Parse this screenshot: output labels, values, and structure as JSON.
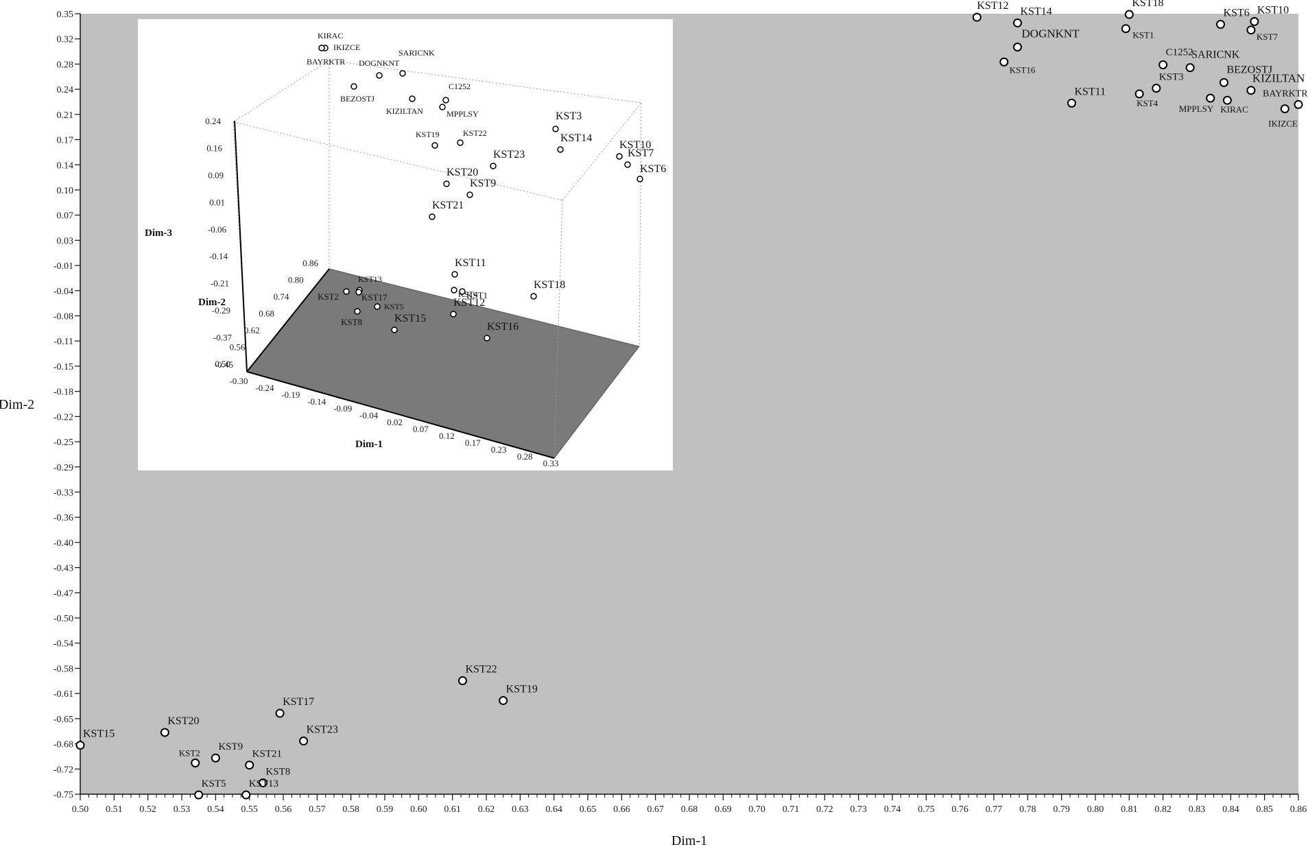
{
  "chart_data": [
    {
      "type": "scatter",
      "title": "",
      "xlabel": "Dim-1",
      "ylabel": "Dim-2",
      "xlim": [
        0.5,
        0.86
      ],
      "ylim": [
        -0.75,
        0.35
      ],
      "grid": false,
      "background": "#c0c0c0",
      "x_ticks": [
        "0.50",
        "0.51",
        "0.52",
        "0.53",
        "0.54",
        "0.55",
        "0.56",
        "0.57",
        "0.58",
        "0.59",
        "0.60",
        "0.61",
        "0.62",
        "0.63",
        "0.64",
        "0.65",
        "0.66",
        "0.67",
        "0.68",
        "0.69",
        "0.70",
        "0.71",
        "0.72",
        "0.73",
        "0.74",
        "0.75",
        "0.76",
        "0.77",
        "0.78",
        "0.79",
        "0.80",
        "0.81",
        "0.82",
        "0.83",
        "0.84",
        "0.85",
        "0.86"
      ],
      "y_ticks": [
        "0.35",
        "0.32",
        "0.28",
        "0.24",
        "0.21",
        "0.17",
        "0.14",
        "0.10",
        "0.07",
        "0.03",
        "-0.01",
        "-0.04",
        "-0.08",
        "-0.11",
        "-0.15",
        "-0.18",
        "-0.22",
        "-0.25",
        "-0.29",
        "-0.33",
        "-0.36",
        "-0.40",
        "-0.43",
        "-0.47",
        "-0.50",
        "-0.54",
        "-0.58",
        "-0.61",
        "-0.65",
        "-0.68",
        "-0.72",
        "-0.75"
      ],
      "points": [
        {
          "label": "KST12",
          "x": 0.765,
          "y": 0.345
        },
        {
          "label": "KST14",
          "x": 0.777,
          "y": 0.337
        },
        {
          "label": "KST18",
          "x": 0.81,
          "y": 0.349
        },
        {
          "label": "KST1",
          "x": 0.809,
          "y": 0.329
        },
        {
          "label": "DOGNKNT",
          "x": 0.777,
          "y": 0.303
        },
        {
          "label": "KST16",
          "x": 0.773,
          "y": 0.282
        },
        {
          "label": "KST6",
          "x": 0.837,
          "y": 0.335
        },
        {
          "label": "KST10",
          "x": 0.847,
          "y": 0.339
        },
        {
          "label": "KST7",
          "x": 0.846,
          "y": 0.327
        },
        {
          "label": "C1252",
          "x": 0.82,
          "y": 0.278
        },
        {
          "label": "SARICNK",
          "x": 0.828,
          "y": 0.274
        },
        {
          "label": "KST3",
          "x": 0.818,
          "y": 0.245
        },
        {
          "label": "BEZOSTJ",
          "x": 0.838,
          "y": 0.253
        },
        {
          "label": "KIZILTAN",
          "x": 0.846,
          "y": 0.242
        },
        {
          "label": "KST11",
          "x": 0.793,
          "y": 0.224
        },
        {
          "label": "KST4",
          "x": 0.813,
          "y": 0.237
        },
        {
          "label": "MPPLSY",
          "x": 0.834,
          "y": 0.231
        },
        {
          "label": "KIRAC",
          "x": 0.839,
          "y": 0.228
        },
        {
          "label": "BAYRKTR",
          "x": 0.86,
          "y": 0.222
        },
        {
          "label": "IKIZCE",
          "x": 0.856,
          "y": 0.216
        },
        {
          "label": "KST22",
          "x": 0.613,
          "y": -0.59
        },
        {
          "label": "KST19",
          "x": 0.625,
          "y": -0.618
        },
        {
          "label": "KST17",
          "x": 0.559,
          "y": -0.636
        },
        {
          "label": "KST23",
          "x": 0.566,
          "y": -0.675
        },
        {
          "label": "KST20",
          "x": 0.525,
          "y": -0.663
        },
        {
          "label": "KST15",
          "x": 0.5,
          "y": -0.681
        },
        {
          "label": "KST2",
          "x": 0.534,
          "y": -0.706
        },
        {
          "label": "KST9",
          "x": 0.54,
          "y": -0.699
        },
        {
          "label": "KST21",
          "x": 0.55,
          "y": -0.709
        },
        {
          "label": "KST8",
          "x": 0.554,
          "y": -0.734
        },
        {
          "label": "KST13",
          "x": 0.549,
          "y": -0.751
        },
        {
          "label": "KST5",
          "x": 0.535,
          "y": -0.751
        }
      ]
    },
    {
      "type": "scatter",
      "title": "",
      "xlabel": "Dim-1",
      "ylabel": "Dim-2",
      "zlabel": "Dim-3",
      "x_ticks": [
        "-0.30",
        "-0.24",
        "-0.19",
        "-0.14",
        "-0.09",
        "-0.04",
        "0.02",
        "0.07",
        "0.12",
        "0.17",
        "0.23",
        "0.28",
        "0.33"
      ],
      "y_ticks": [
        "0.86",
        "0.80",
        "0.74",
        "0.68",
        "0.62",
        "0.56",
        "0.50"
      ],
      "z_ticks": [
        "0.24",
        "0.16",
        "0.09",
        "0.01",
        "-0.06",
        "-0.14",
        "-0.21",
        "-0.29",
        "-0.37",
        "-0.45"
      ],
      "floor_color": "#7a7a7a",
      "points": [
        {
          "label": "KIRAC"
        },
        {
          "label": "IKIZCE"
        },
        {
          "label": "BAYRKTR"
        },
        {
          "label": "DOGNKNT"
        },
        {
          "label": "SARICNK"
        },
        {
          "label": "BEZOSTJ"
        },
        {
          "label": "C1252"
        },
        {
          "label": "KIZILTAN"
        },
        {
          "label": "MPPLSY"
        },
        {
          "label": "KST19"
        },
        {
          "label": "KST22"
        },
        {
          "label": "KST3"
        },
        {
          "label": "KST14"
        },
        {
          "label": "KST10"
        },
        {
          "label": "KST7"
        },
        {
          "label": "KST6"
        },
        {
          "label": "KST23"
        },
        {
          "label": "KST20"
        },
        {
          "label": "KST9"
        },
        {
          "label": "KST21"
        },
        {
          "label": "KST11"
        },
        {
          "label": "KST13"
        },
        {
          "label": "KST4"
        },
        {
          "label": "KST1"
        },
        {
          "label": "KST2"
        },
        {
          "label": "KST17"
        },
        {
          "label": "KST5"
        },
        {
          "label": "KST8"
        },
        {
          "label": "KST18"
        },
        {
          "label": "KST12"
        },
        {
          "label": "KST15"
        },
        {
          "label": "KST16"
        }
      ]
    }
  ]
}
